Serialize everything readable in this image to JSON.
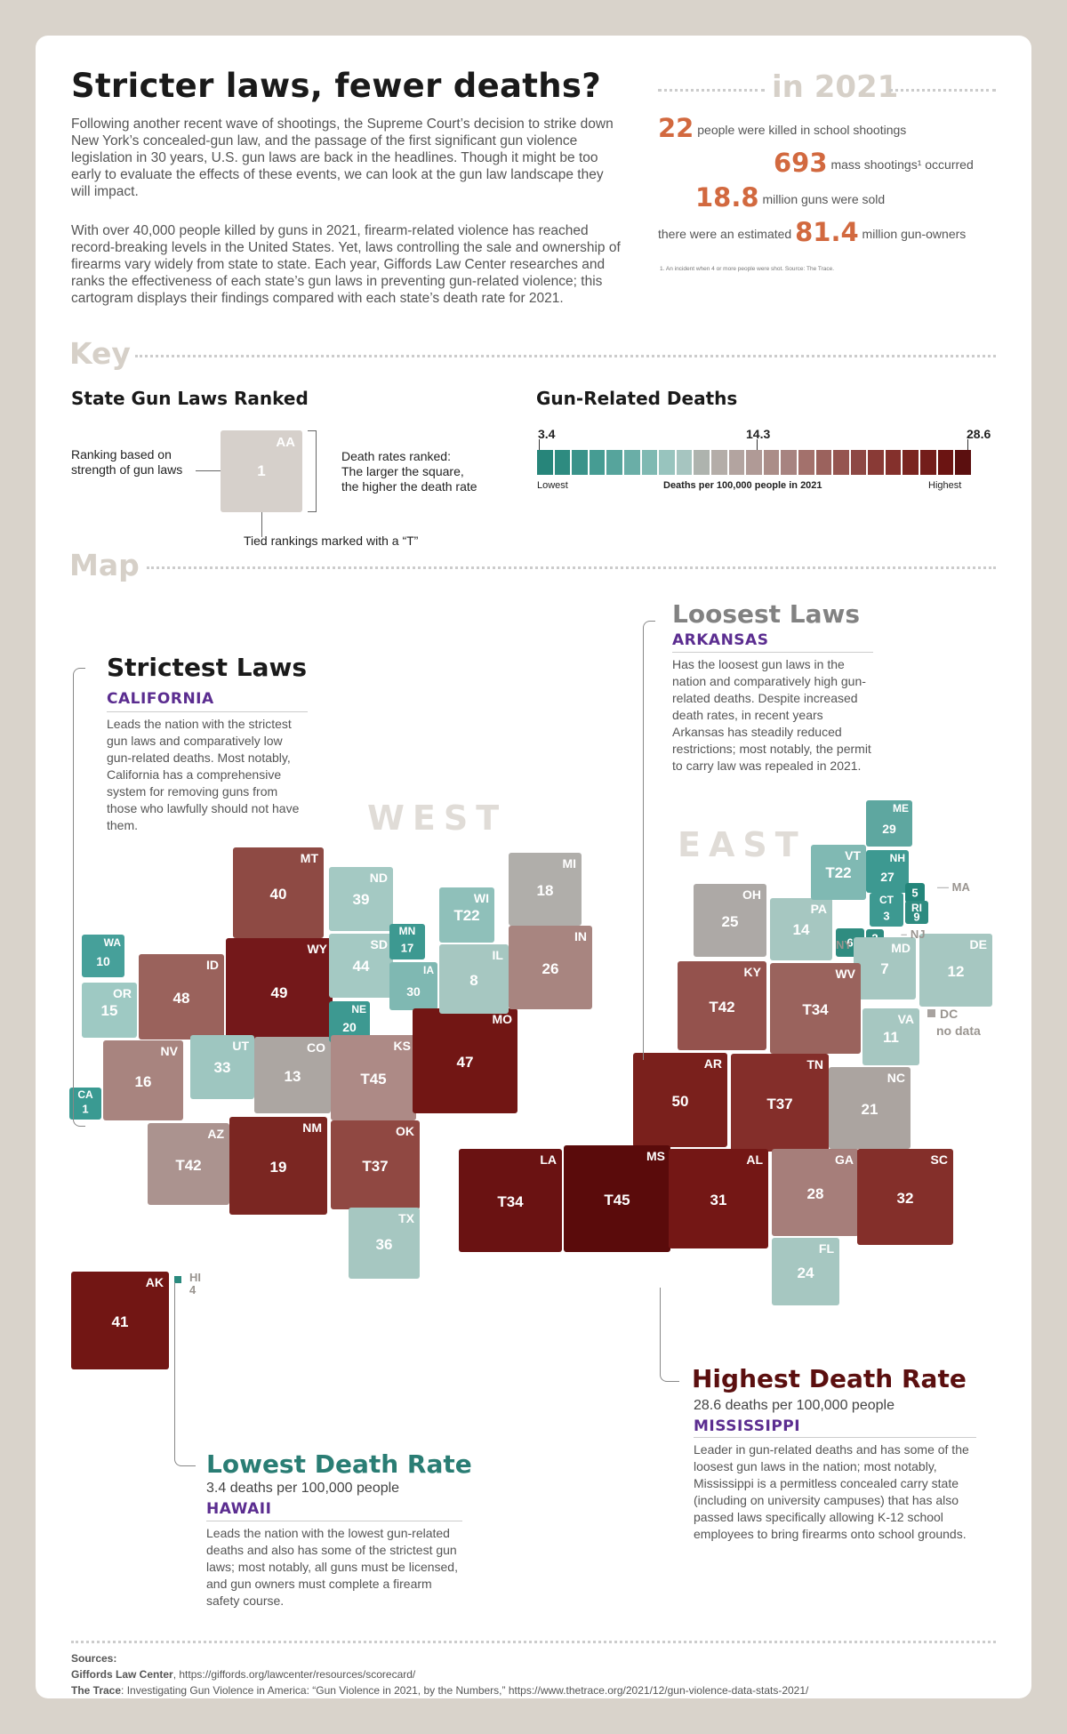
{
  "header": {
    "title": "Stricter laws, fewer deaths?",
    "para1": "Following another recent wave of shootings, the Supreme Court’s decision to strike down New York’s concealed-gun law, and the passage of the first significant gun violence legislation in 30 years, U.S. gun laws are back in the headlines. Though it might be too early to evaluate the effects of these events, we can look at the gun law landscape they will impact.",
    "para2": "With over 40,000 people killed by guns in 2021, firearm-related violence has reached record-breaking levels in the United States. Yet, laws controlling the sale and ownership of firearms vary widely from state to state. Each year, Giffords Law Center researches and ranks the effectiveness of each state’s gun laws in preventing gun-related violence; this cartogram displays their findings compared with each state’s death rate for 2021."
  },
  "stats": {
    "title": "in 2021",
    "school_value": "22",
    "school_text": "people were killed in school shootings",
    "mass_value": "693",
    "mass_text": "mass shootings¹ occurred",
    "guns_value": "18.8",
    "guns_text": "million guns were sold",
    "owners_pre": "there were an estimated",
    "owners_value": "81.4",
    "owners_text": "million gun-owners",
    "footnote": "1. An incident when 4 or more people were shot.  Source: The Trace."
  },
  "key": {
    "section": "Key",
    "laws_title": "State Gun Laws Ranked",
    "ranking_label": "Ranking based on\nstrength of gun laws",
    "sample_abbr": "AA",
    "sample_rank": "1",
    "death_label": "Death rates ranked:\nThe larger the square,\nthe higher the death rate",
    "tied_label": "Tied rankings marked with a “T”",
    "deaths_title": "Gun-Related Deaths",
    "scale_min": "3.4",
    "scale_mid": "14.3",
    "scale_max": "28.6",
    "scale_lowest": "Lowest",
    "scale_caption": "Deaths per 100,000 people in 2021",
    "scale_highest": "Highest",
    "scale_colors": [
      "#27857a",
      "#2e8b80",
      "#3a938a",
      "#469c93",
      "#56a49c",
      "#6aaea7",
      "#7fb9b2",
      "#98c4be",
      "#a6c5c0",
      "#aeb3ae",
      "#b4ada8",
      "#b3a4a0",
      "#b09a96",
      "#ab8d88",
      "#a78380",
      "#a3716c",
      "#9b625d",
      "#955550",
      "#8d4844",
      "#893a36",
      "#84302c",
      "#7a2420",
      "#731d1a",
      "#6b1412",
      "#5b0f0f"
    ]
  },
  "map": {
    "section": "Map",
    "west_label": "WEST",
    "east_label": "EAST",
    "states": [
      {
        "abbr": "WA",
        "rank": "10",
        "color": "#46a09a"
      },
      {
        "abbr": "OR",
        "rank": "15",
        "color": "#9ec9c3"
      },
      {
        "abbr": "CA",
        "rank": "1",
        "color": "#3a9a92"
      },
      {
        "abbr": "ID",
        "rank": "48",
        "color": "#9a625c"
      },
      {
        "abbr": "NV",
        "rank": "16",
        "color": "#a8847f"
      },
      {
        "abbr": "AZ",
        "rank": "T42",
        "color": "#ab938f"
      },
      {
        "abbr": "MT",
        "rank": "40",
        "color": "#8e4a44"
      },
      {
        "abbr": "WY",
        "rank": "49",
        "color": "#74181a"
      },
      {
        "abbr": "UT",
        "rank": "33",
        "color": "#9ec6c0"
      },
      {
        "abbr": "CO",
        "rank": "13",
        "color": "#aca6a2"
      },
      {
        "abbr": "NM",
        "rank": "19",
        "color": "#7b2622"
      },
      {
        "abbr": "ND",
        "rank": "39",
        "color": "#a4c9c3"
      },
      {
        "abbr": "SD",
        "rank": "44",
        "color": "#a4c9c3"
      },
      {
        "abbr": "NE",
        "rank": "20",
        "color": "#3d9991"
      },
      {
        "abbr": "KS",
        "rank": "T45",
        "color": "#ad8a86"
      },
      {
        "abbr": "OK",
        "rank": "T37",
        "color": "#904842"
      },
      {
        "abbr": "TX",
        "rank": "36",
        "color": "#a6c7c1"
      },
      {
        "abbr": "MN",
        "rank": "17",
        "color": "#3d9991"
      },
      {
        "abbr": "IA",
        "rank": "30",
        "color": "#7fb8b2"
      },
      {
        "abbr": "MO",
        "rank": "47",
        "color": "#721614"
      },
      {
        "abbr": "WI",
        "rank": "T22",
        "color": "#8fc0ba"
      },
      {
        "abbr": "IL",
        "rank": "8",
        "color": "#a6c7c1"
      },
      {
        "abbr": "MI",
        "rank": "18",
        "color": "#b0aeaa"
      },
      {
        "abbr": "IN",
        "rank": "26",
        "color": "#a88580"
      },
      {
        "abbr": "AK",
        "rank": "41",
        "color": "#721614"
      },
      {
        "abbr": "HI",
        "rank": "4",
        "color": "#2a8a7e"
      },
      {
        "abbr": "OH",
        "rank": "25",
        "color": "#ada9a6"
      },
      {
        "abbr": "PA",
        "rank": "14",
        "color": "#a6c7c1"
      },
      {
        "abbr": "NY",
        "rank": "6",
        "color": "#2f8c80"
      },
      {
        "abbr": "VT",
        "rank": "T22",
        "color": "#80b9b3"
      },
      {
        "abbr": "NH",
        "rank": "27",
        "color": "#3d9991"
      },
      {
        "abbr": "ME",
        "rank": "29",
        "color": "#5ea7a0"
      },
      {
        "abbr": "MA",
        "rank": "5",
        "color": "#23857a"
      },
      {
        "abbr": "CT",
        "rank": "3",
        "color": "#3d9991"
      },
      {
        "abbr": "RI",
        "rank": "9",
        "color": "#2e8b80"
      },
      {
        "abbr": "NJ",
        "rank": "2",
        "color": "#2e8b80"
      },
      {
        "abbr": "MD",
        "rank": "7",
        "color": "#a6c7c1"
      },
      {
        "abbr": "DE",
        "rank": "12",
        "color": "#a6c7c1"
      },
      {
        "abbr": "KY",
        "rank": "T42",
        "color": "#94524d"
      },
      {
        "abbr": "WV",
        "rank": "T34",
        "color": "#9a635d"
      },
      {
        "abbr": "VA",
        "rank": "11",
        "color": "#a6c7c1"
      },
      {
        "abbr": "AR",
        "rank": "50",
        "color": "#7a201c"
      },
      {
        "abbr": "TN",
        "rank": "T37",
        "color": "#842e2a"
      },
      {
        "abbr": "NC",
        "rank": "21",
        "color": "#aba4a0"
      },
      {
        "abbr": "LA",
        "rank": "T34",
        "color": "#6a1212"
      },
      {
        "abbr": "MS",
        "rank": "T45",
        "color": "#5a0b0b"
      },
      {
        "abbr": "AL",
        "rank": "31",
        "color": "#741715"
      },
      {
        "abbr": "GA",
        "rank": "28",
        "color": "#a67e7a"
      },
      {
        "abbr": "SC",
        "rank": "32",
        "color": "#842f2a"
      },
      {
        "abbr": "FL",
        "rank": "24",
        "color": "#a6c7c1"
      }
    ],
    "dc_abbr": "DC",
    "dc_text": "no data",
    "ma_label": "MA",
    "ny_label": "NY",
    "nj_label": "NJ",
    "hi_label": "HI",
    "hi_rank": "4"
  },
  "callouts": {
    "strictest": {
      "head": "Strictest Laws",
      "state": "CALIFORNIA",
      "body": "Leads the nation with the strictest gun laws and comparatively low gun-related deaths. Most notably, California has a comprehensive system for removing guns from those who lawfully should not have them."
    },
    "loosest": {
      "head": "Loosest Laws",
      "state": "ARKANSAS",
      "body": "Has the loosest gun laws in the nation and comparatively high gun-related deaths. Despite increased death rates, in recent years Arkansas has steadily reduced restrictions; most notably, the permit to carry law was repealed in 2021."
    },
    "highest": {
      "head": "Highest Death Rate",
      "sub": "28.6 deaths per 100,000 people",
      "state": "MISSISSIPPI",
      "body": "Leader in gun-related deaths and has some of the loosest gun laws in the nation; most notably, Mississippi is a permitless concealed carry state (including on university campuses) that has also passed laws specifically allowing K-12 school employees to bring firearms onto school grounds."
    },
    "lowest": {
      "head": "Lowest Death Rate",
      "sub": "3.4 deaths per 100,000 people",
      "state": "HAWAII",
      "body": "Leads the nation with the lowest gun-related deaths and also has some of the strictest gun laws; most notably, all guns must be licensed, and gun owners must complete a firearm safety course."
    }
  },
  "sources": {
    "heading": "Sources:",
    "s1_name": "Giffords Law Center",
    "s1_text": ", https://giffords.org/lawcenter/resources/scorecard/",
    "s2_name": "The Trace",
    "s2_text": ": Investigating Gun Violence in America: “Gun Violence in 2021, by the Numbers,” https://www.thetrace.org/2021/12/gun-violence-data-stats-2021/"
  }
}
